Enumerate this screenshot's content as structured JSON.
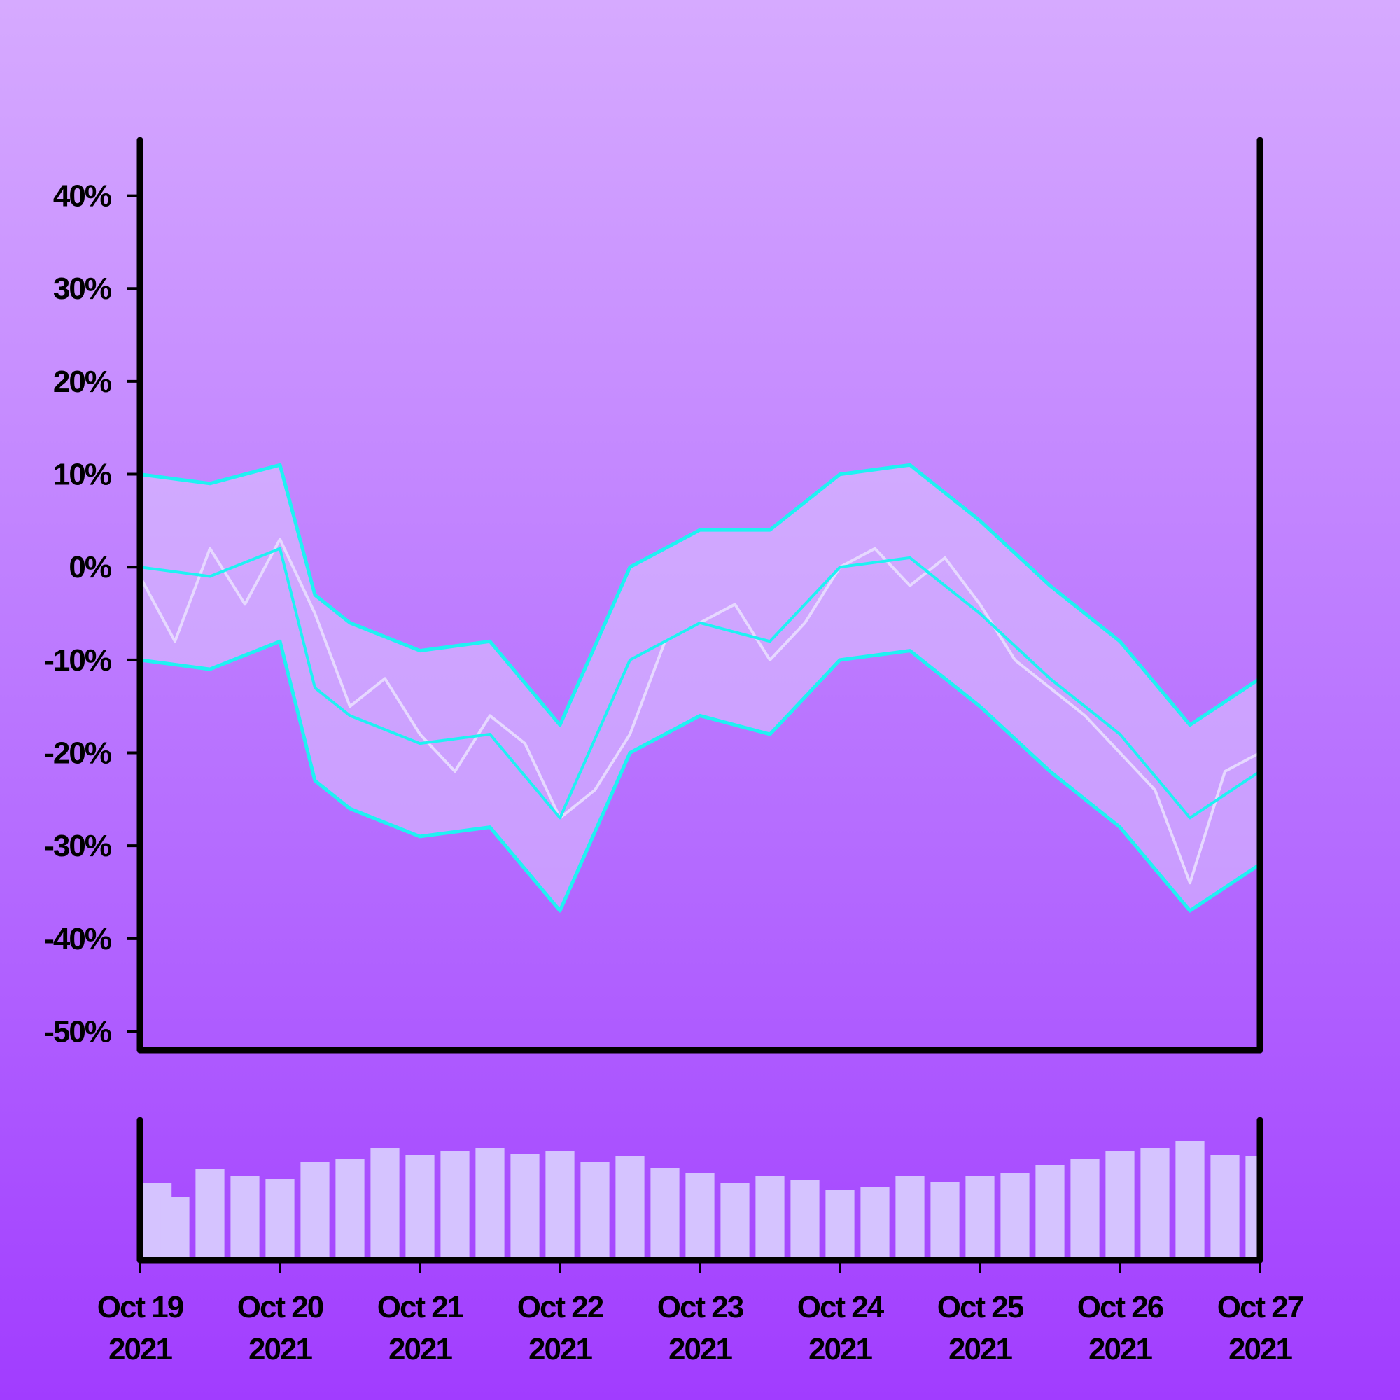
{
  "chart_data": {
    "type": "line",
    "title": "",
    "xlabel": "",
    "ylabel": "",
    "y_axis": {
      "ticks": [
        {
          "value": 40,
          "label": "40%"
        },
        {
          "value": 30,
          "label": "30%"
        },
        {
          "value": 20,
          "label": "20%"
        },
        {
          "value": 10,
          "label": "10%"
        },
        {
          "value": 0,
          "label": "0%"
        },
        {
          "value": -10,
          "label": "-10%"
        },
        {
          "value": -20,
          "label": "-20%"
        },
        {
          "value": -30,
          "label": "-30%"
        },
        {
          "value": -40,
          "label": "-40%"
        },
        {
          "value": -50,
          "label": "-50%"
        }
      ],
      "ylim": [
        -52,
        46
      ]
    },
    "x_axis": {
      "xlim": [
        "2021-10-19",
        "2021-10-27"
      ],
      "ticks": [
        {
          "date": "2021-10-19",
          "line1": "Oct 19",
          "line2": "2021"
        },
        {
          "date": "2021-10-20",
          "line1": "Oct 20",
          "line2": "2021"
        },
        {
          "date": "2021-10-21",
          "line1": "Oct 21",
          "line2": "2021"
        },
        {
          "date": "2021-10-22",
          "line1": "Oct 22",
          "line2": "2021"
        },
        {
          "date": "2021-10-23",
          "line1": "Oct 23",
          "line2": "2021"
        },
        {
          "date": "2021-10-24",
          "line1": "Oct 24",
          "line2": "2021"
        },
        {
          "date": "2021-10-25",
          "line1": "Oct 25",
          "line2": "2021"
        },
        {
          "date": "2021-10-26",
          "line1": "Oct 26",
          "line2": "2021"
        },
        {
          "date": "2021-10-27",
          "line1": "Oct 27",
          "line2": "2021"
        }
      ]
    },
    "grid": false,
    "legend": "none",
    "colors": {
      "band_line": "#1ef2f2",
      "band_fill": "#dcc7ff",
      "price_line": "#e6d8ff",
      "volume_bar": "#d5c3ff",
      "axis": "#000000"
    },
    "series": [
      {
        "role": "upper-band",
        "x": [
          "2021-10-19 00:00",
          "2021-10-19 12:00",
          "2021-10-20 00:00",
          "2021-10-20 06:00",
          "2021-10-20 12:00",
          "2021-10-21 00:00",
          "2021-10-21 12:00",
          "2021-10-22 00:00",
          "2021-10-22 12:00",
          "2021-10-23 00:00",
          "2021-10-23 12:00",
          "2021-10-24 00:00",
          "2021-10-24 12:00",
          "2021-10-25 00:00",
          "2021-10-25 12:00",
          "2021-10-26 00:00",
          "2021-10-26 12:00",
          "2021-10-27 00:00"
        ],
        "y": [
          10,
          9,
          11,
          -3,
          -6,
          -9,
          -8,
          -17,
          0,
          4,
          4,
          10,
          11,
          5,
          -2,
          -8,
          -17,
          -12
        ]
      },
      {
        "role": "middle-band",
        "x": [
          "2021-10-19 00:00",
          "2021-10-19 12:00",
          "2021-10-20 00:00",
          "2021-10-20 06:00",
          "2021-10-20 12:00",
          "2021-10-21 00:00",
          "2021-10-21 12:00",
          "2021-10-22 00:00",
          "2021-10-22 12:00",
          "2021-10-23 00:00",
          "2021-10-23 12:00",
          "2021-10-24 00:00",
          "2021-10-24 12:00",
          "2021-10-25 00:00",
          "2021-10-25 12:00",
          "2021-10-26 00:00",
          "2021-10-26 12:00",
          "2021-10-27 00:00"
        ],
        "y": [
          0,
          -1,
          2,
          -13,
          -16,
          -19,
          -18,
          -27,
          -10,
          -6,
          -8,
          0,
          1,
          -5,
          -12,
          -18,
          -27,
          -22
        ]
      },
      {
        "role": "lower-band",
        "x": [
          "2021-10-19 00:00",
          "2021-10-19 12:00",
          "2021-10-20 00:00",
          "2021-10-20 06:00",
          "2021-10-20 12:00",
          "2021-10-21 00:00",
          "2021-10-21 12:00",
          "2021-10-22 00:00",
          "2021-10-22 12:00",
          "2021-10-23 00:00",
          "2021-10-23 12:00",
          "2021-10-24 00:00",
          "2021-10-24 12:00",
          "2021-10-25 00:00",
          "2021-10-25 12:00",
          "2021-10-26 00:00",
          "2021-10-26 12:00",
          "2021-10-27 00:00"
        ],
        "y": [
          -10,
          -11,
          -8,
          -23,
          -26,
          -29,
          -28,
          -37,
          -20,
          -16,
          -18,
          -10,
          -9,
          -15,
          -22,
          -28,
          -37,
          -32
        ]
      },
      {
        "role": "price",
        "x": [
          "2021-10-19 00:00",
          "2021-10-19 06:00",
          "2021-10-19 12:00",
          "2021-10-19 18:00",
          "2021-10-20 00:00",
          "2021-10-20 06:00",
          "2021-10-20 12:00",
          "2021-10-20 18:00",
          "2021-10-21 00:00",
          "2021-10-21 06:00",
          "2021-10-21 12:00",
          "2021-10-21 18:00",
          "2021-10-22 00:00",
          "2021-10-22 06:00",
          "2021-10-22 12:00",
          "2021-10-22 18:00",
          "2021-10-23 00:00",
          "2021-10-23 06:00",
          "2021-10-23 12:00",
          "2021-10-23 18:00",
          "2021-10-24 00:00",
          "2021-10-24 06:00",
          "2021-10-24 12:00",
          "2021-10-24 18:00",
          "2021-10-25 00:00",
          "2021-10-25 06:00",
          "2021-10-25 12:00",
          "2021-10-25 18:00",
          "2021-10-26 00:00",
          "2021-10-26 06:00",
          "2021-10-26 12:00",
          "2021-10-26 18:00",
          "2021-10-27 00:00"
        ],
        "y": [
          -1,
          -8,
          2,
          -4,
          3,
          -5,
          -15,
          -12,
          -18,
          -22,
          -16,
          -19,
          -27,
          -24,
          -18,
          -8,
          -6,
          -4,
          -10,
          -6,
          0,
          2,
          -2,
          1,
          -4,
          -10,
          -13,
          -16,
          -20,
          -24,
          -34,
          -22,
          -20
        ]
      }
    ],
    "volume": {
      "x": [
        "2021-10-19 00:00",
        "2021-10-19 06:00",
        "2021-10-19 12:00",
        "2021-10-19 18:00",
        "2021-10-20 00:00",
        "2021-10-20 06:00",
        "2021-10-20 12:00",
        "2021-10-20 18:00",
        "2021-10-21 00:00",
        "2021-10-21 06:00",
        "2021-10-21 12:00",
        "2021-10-21 18:00",
        "2021-10-22 00:00",
        "2021-10-22 06:00",
        "2021-10-22 12:00",
        "2021-10-22 18:00",
        "2021-10-23 00:00",
        "2021-10-23 06:00",
        "2021-10-23 12:00",
        "2021-10-23 18:00",
        "2021-10-24 00:00",
        "2021-10-24 06:00",
        "2021-10-24 12:00",
        "2021-10-24 18:00",
        "2021-10-25 00:00",
        "2021-10-25 06:00",
        "2021-10-25 12:00",
        "2021-10-25 18:00",
        "2021-10-26 00:00",
        "2021-10-26 06:00",
        "2021-10-26 12:00",
        "2021-10-26 18:00",
        "2021-10-27 00:00"
      ],
      "values": [
        0.55,
        0.45,
        0.65,
        0.6,
        0.58,
        0.7,
        0.72,
        0.8,
        0.75,
        0.78,
        0.8,
        0.76,
        0.78,
        0.7,
        0.74,
        0.66,
        0.62,
        0.55,
        0.6,
        0.57,
        0.5,
        0.52,
        0.6,
        0.56,
        0.6,
        0.62,
        0.68,
        0.72,
        0.78,
        0.8,
        0.85,
        0.75,
        0.74
      ]
    }
  }
}
